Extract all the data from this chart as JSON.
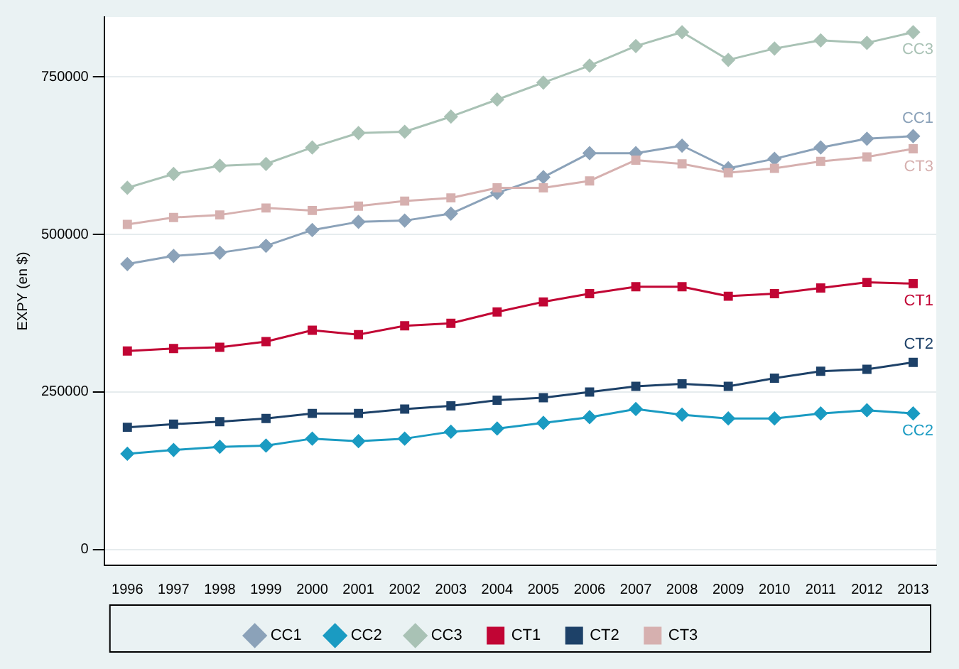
{
  "chart_data": {
    "type": "line",
    "ylabel": "EXPY (en $)",
    "categories": [
      "1996",
      "1997",
      "1998",
      "1999",
      "2000",
      "2001",
      "2002",
      "2003",
      "2004",
      "2005",
      "2006",
      "2007",
      "2008",
      "2009",
      "2010",
      "2011",
      "2012",
      "2013"
    ],
    "series": [
      {
        "name": "CC1",
        "color": "#8ba2b9",
        "marker": "diamond",
        "values": [
          453000,
          466000,
          471000,
          482000,
          507000,
          520000,
          522000,
          533000,
          566000,
          591000,
          629000,
          629000,
          641000,
          605000,
          620000,
          638000,
          652000,
          656000
        ]
      },
      {
        "name": "CC2",
        "color": "#1a9bc2",
        "marker": "diamond",
        "values": [
          152000,
          158000,
          163000,
          165000,
          176000,
          172000,
          176000,
          187000,
          192000,
          201000,
          210000,
          223000,
          214000,
          208000,
          208000,
          216000,
          221000,
          216000
        ]
      },
      {
        "name": "CC3",
        "color": "#a9c2b5",
        "marker": "diamond",
        "values": [
          574000,
          596000,
          609000,
          612000,
          638000,
          661000,
          663000,
          687000,
          714000,
          741000,
          768000,
          799000,
          821000,
          777000,
          795000,
          808000,
          804000,
          821000
        ]
      },
      {
        "name": "CT1",
        "color": "#c10534",
        "marker": "square",
        "values": [
          315000,
          319000,
          321000,
          330000,
          348000,
          341000,
          355000,
          359000,
          377000,
          393000,
          406000,
          417000,
          417000,
          402000,
          406000,
          415000,
          424000,
          422000
        ]
      },
      {
        "name": "CT2",
        "color": "#1d4168",
        "marker": "square",
        "values": [
          194000,
          199000,
          203000,
          208000,
          216000,
          216000,
          223000,
          228000,
          237000,
          241000,
          250000,
          259000,
          263000,
          259000,
          272000,
          283000,
          286000,
          297000
        ]
      },
      {
        "name": "CT3",
        "color": "#d6b0af",
        "marker": "square",
        "values": [
          516000,
          527000,
          531000,
          542000,
          538000,
          545000,
          553000,
          558000,
          574000,
          574000,
          585000,
          618000,
          612000,
          598000,
          605000,
          616000,
          623000,
          636000
        ]
      }
    ],
    "ylim": [
      -25000,
      845000
    ],
    "yticks": [
      0,
      250000,
      500000,
      750000
    ],
    "grid": "y",
    "legend": "bottom",
    "line_style": "solid"
  }
}
